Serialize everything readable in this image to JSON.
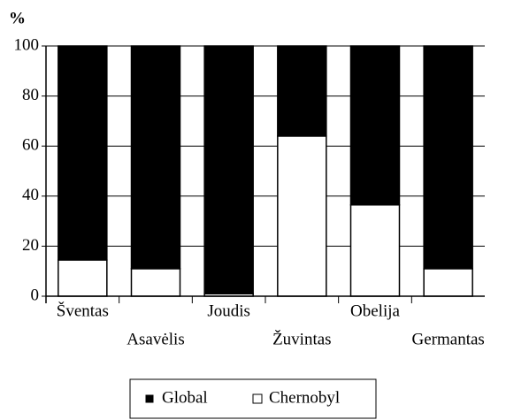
{
  "chart_data": {
    "type": "stacked_bar",
    "y_label": "%",
    "categories": [
      "Šventas",
      "Asavėlis",
      "Joudis",
      "Žuvintas",
      "Obelija",
      "Germantas"
    ],
    "series": [
      {
        "name": "Global",
        "color": "#000000",
        "values": [
          85.5,
          89,
          99,
          36,
          63.5,
          89
        ]
      },
      {
        "name": "Chernobyl",
        "color": "#ffffff",
        "values": [
          14.5,
          11,
          1,
          64,
          36.5,
          11
        ]
      }
    ],
    "ylim": [
      0,
      100
    ],
    "yticks": [
      0,
      20,
      40,
      60,
      80,
      100
    ],
    "grid": true,
    "legend": "bottom"
  }
}
